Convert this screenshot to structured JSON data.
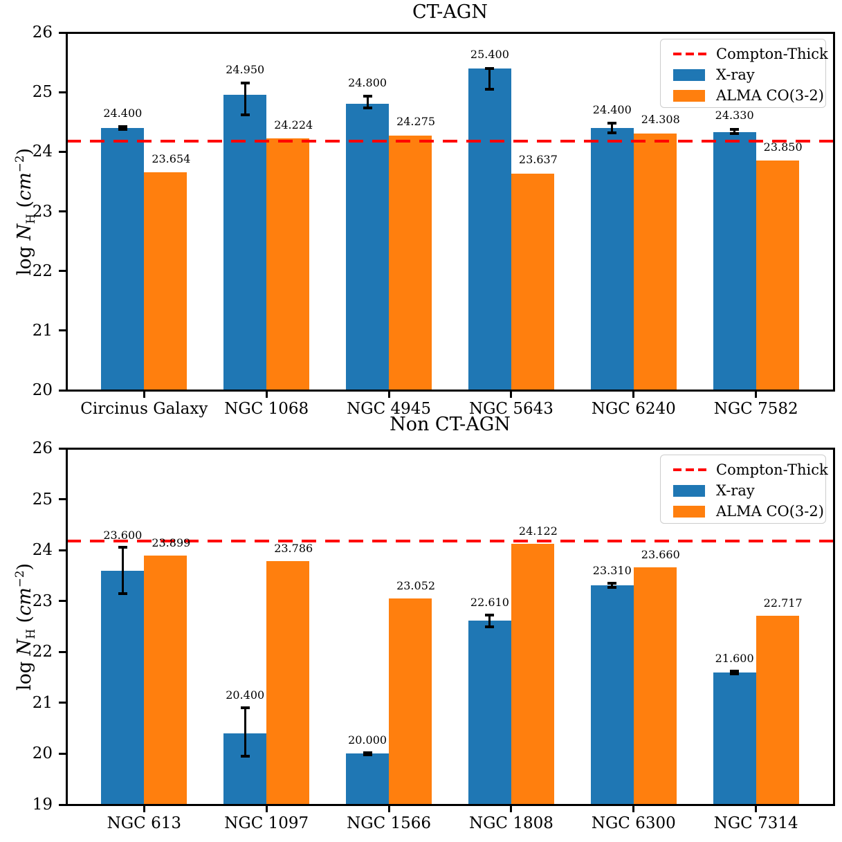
{
  "figure_title": "",
  "ylabel_parts": {
    "log": "log ",
    "n": "N",
    "sub": "H",
    "open": " (",
    "unit": "cm",
    "sup": "−2",
    "close": ")"
  },
  "ylabel_text": "log N_H (cm^−2)",
  "colors": {
    "xray": "#1f77b4",
    "alma": "#ff7f0e",
    "threshold": "#ff0000",
    "error_bar": "#000000"
  },
  "chart_data": [
    {
      "type": "bar",
      "title": "CT-AGN",
      "categories": [
        "Circinus Galaxy",
        "NGC 1068",
        "NGC 4945",
        "NGC 5643",
        "NGC 6240",
        "NGC 7582"
      ],
      "ylim": [
        20,
        26
      ],
      "yticks": [
        "20",
        "21",
        "22",
        "23",
        "24",
        "25",
        "26"
      ],
      "grid": false,
      "legend_position": "upper right",
      "threshold": {
        "label": "Compton-Thick",
        "value": 24.18,
        "color": "#ff0000",
        "style": "dashed"
      },
      "series": [
        {
          "name": "X-ray",
          "color": "#1f77b4",
          "values": [
            24.4,
            24.95,
            24.8,
            25.4,
            24.4,
            24.33
          ],
          "labels": [
            "24.400",
            "24.950",
            "24.800",
            "25.400",
            "24.400",
            "24.330"
          ],
          "err_up": [
            0.02,
            0.2,
            0.13,
            0.0,
            0.08,
            0.05
          ],
          "err_down": [
            0.02,
            0.33,
            0.06,
            0.35,
            0.08,
            0.02
          ]
        },
        {
          "name": "ALMA CO(3-2)",
          "color": "#ff7f0e",
          "values": [
            23.654,
            24.224,
            24.275,
            23.637,
            24.308,
            23.85
          ],
          "labels": [
            "23.654",
            "24.224",
            "24.275",
            "23.637",
            "24.308",
            "23.850"
          ]
        }
      ],
      "legend": [
        {
          "label": "Compton-Thick",
          "swatch": "dashed-line",
          "color": "#ff0000"
        },
        {
          "label": "X-ray",
          "swatch": "patch",
          "color": "#1f77b4"
        },
        {
          "label": "ALMA CO(3-2)",
          "swatch": "patch",
          "color": "#ff7f0e"
        }
      ]
    },
    {
      "type": "bar",
      "title": "Non CT-AGN",
      "categories": [
        "NGC 613",
        "NGC 1097",
        "NGC 1566",
        "NGC 1808",
        "NGC 6300",
        "NGC 7314"
      ],
      "ylim": [
        19,
        26
      ],
      "yticks": [
        "19",
        "20",
        "21",
        "22",
        "23",
        "24",
        "25",
        "26"
      ],
      "grid": false,
      "legend_position": "upper right",
      "threshold": {
        "label": "Compton-Thick",
        "value": 24.18,
        "color": "#ff0000",
        "style": "dashed"
      },
      "series": [
        {
          "name": "X-ray",
          "color": "#1f77b4",
          "values": [
            23.6,
            20.4,
            20.0,
            22.61,
            23.31,
            21.6
          ],
          "labels": [
            "23.600",
            "20.400",
            "20.000",
            "22.610",
            "23.310",
            "21.600"
          ],
          "err_up": [
            0.45,
            0.5,
            0.02,
            0.12,
            0.04,
            0.03
          ],
          "err_down": [
            0.45,
            0.45,
            0.02,
            0.12,
            0.04,
            0.03
          ]
        },
        {
          "name": "ALMA CO(3-2)",
          "color": "#ff7f0e",
          "values": [
            23.899,
            23.786,
            23.052,
            24.122,
            23.66,
            22.717
          ],
          "labels": [
            "23.899",
            "23.786",
            "23.052",
            "24.122",
            "23.660",
            "22.717"
          ]
        }
      ],
      "legend": [
        {
          "label": "Compton-Thick",
          "swatch": "dashed-line",
          "color": "#ff0000"
        },
        {
          "label": "X-ray",
          "swatch": "patch",
          "color": "#1f77b4"
        },
        {
          "label": "ALMA CO(3-2)",
          "swatch": "patch",
          "color": "#ff7f0e"
        }
      ]
    }
  ]
}
